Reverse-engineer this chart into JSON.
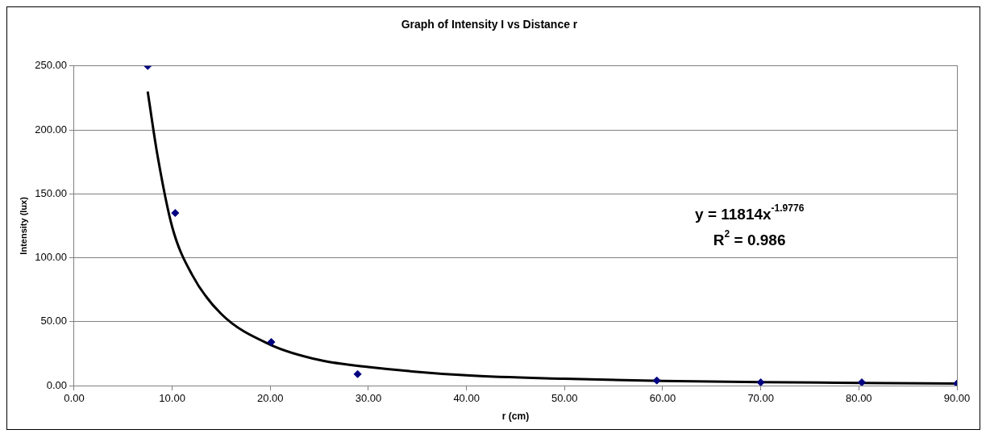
{
  "chart_data": {
    "type": "scatter",
    "title": "Graph of Intensity I vs Distance r",
    "xlabel": "r (cm)",
    "ylabel": "Intensity (lux)",
    "series": [
      {
        "color": "#000080",
        "marker": "diamond",
        "x": [
          7.5,
          10.3,
          20.1,
          28.9,
          59.4,
          70,
          80.3,
          90
        ],
        "values": [
          250,
          135,
          34,
          9,
          4,
          2.5,
          2.5,
          1.5
        ]
      },
      {
        "type": "line",
        "color": "#000000",
        "marker": "none",
        "x": [
          7.5,
          8.5,
          10,
          12,
          15,
          20,
          25,
          30,
          40,
          50,
          60,
          70,
          80,
          90
        ],
        "values": [
          230,
          180,
          124,
          87,
          56,
          32,
          20,
          14.5,
          8,
          5.3,
          3.7,
          2.7,
          2.1,
          1.6
        ]
      }
    ],
    "xlim": [
      0,
      90
    ],
    "xticks": [
      {
        "value": 0,
        "label": "0.00"
      },
      {
        "value": 10,
        "label": "10.00"
      },
      {
        "value": 20,
        "label": "20.00"
      },
      {
        "value": 30,
        "label": "30.00"
      },
      {
        "value": 40,
        "label": "40.00"
      },
      {
        "value": 50,
        "label": "50.00"
      },
      {
        "value": 60,
        "label": "60.00"
      },
      {
        "value": 70,
        "label": "70.00"
      },
      {
        "value": 80,
        "label": "80.00"
      },
      {
        "value": 90,
        "label": "90.00"
      }
    ],
    "ylim": [
      0,
      250
    ],
    "yticks": [
      {
        "value": 0,
        "label": "0.00"
      },
      {
        "value": 50,
        "label": "50.00"
      },
      {
        "value": 100,
        "label": "100.00"
      },
      {
        "value": 150,
        "label": "150.00"
      },
      {
        "value": 200,
        "label": "200.00"
      },
      {
        "value": 250,
        "label": "250.00"
      }
    ],
    "grid": "y",
    "legend": false,
    "annotations": [
      "y = 11814x$^{-1.9776}$",
      "R$^{2}$ = 0.986"
    ]
  }
}
